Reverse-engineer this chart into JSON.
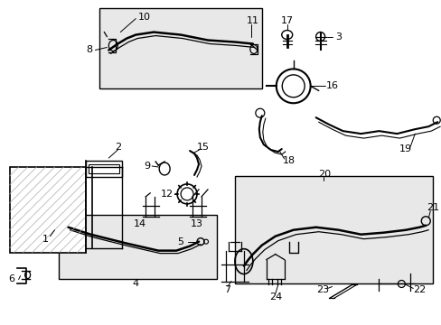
{
  "bg_color": "#ffffff",
  "line_color": "#000000",
  "hatch_color": "#999999",
  "box_fill": "#e8e8e8",
  "figsize": [
    4.89,
    3.6
  ],
  "dpi": 100
}
